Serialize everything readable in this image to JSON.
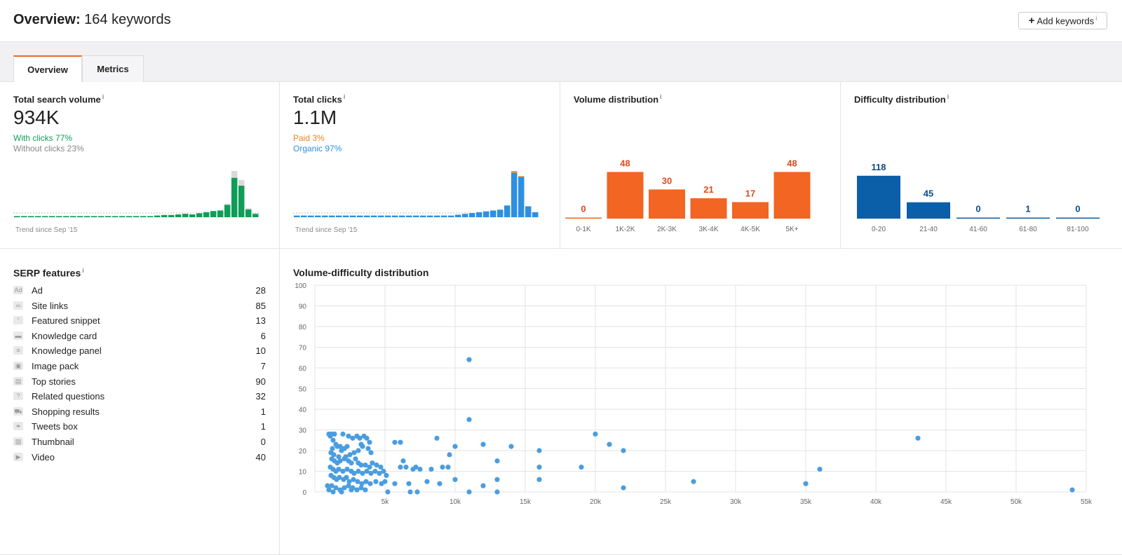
{
  "header": {
    "title_bold": "Overview:",
    "title_rest": "164 keywords",
    "add_button_label": "Add keywords",
    "add_button_info": "i"
  },
  "tabs": [
    {
      "label": "Overview",
      "active": true
    },
    {
      "label": "Metrics",
      "active": false
    }
  ],
  "search_volume": {
    "title": "Total search volume",
    "info": "i",
    "value": "934K",
    "with_clicks": "With clicks 77%",
    "without_clicks": "Without clicks 23%",
    "trend_label": "Trend since Sep '15",
    "colors": {
      "main": "#0f9d58",
      "rest": "#d9d9d9"
    },
    "trend_values": [
      2,
      2,
      2,
      2,
      2,
      2,
      2,
      2,
      2,
      2,
      2,
      2,
      2,
      2,
      2,
      2,
      2,
      2,
      2,
      2,
      3,
      4,
      4,
      5,
      6,
      5,
      7,
      9,
      11,
      12,
      22,
      70,
      56,
      14,
      6
    ],
    "trend_rest_values": [
      0,
      0,
      0,
      0,
      0,
      0,
      0,
      0,
      0,
      0,
      0,
      0,
      0,
      0,
      0,
      0,
      0,
      0,
      0,
      0,
      0,
      0,
      0,
      0,
      0,
      0,
      0,
      0,
      0,
      0,
      2,
      12,
      10,
      2,
      1
    ]
  },
  "clicks": {
    "title": "Total clicks",
    "info": "i",
    "value": "1.1M",
    "paid": "Paid 3%",
    "organic": "Organic 97%",
    "trend_label": "Trend since Sep '15",
    "colors": {
      "organic": "#2e8fe0",
      "paid": "#f39a2b"
    },
    "trend_values": [
      2,
      2,
      2,
      2,
      2,
      2,
      2,
      2,
      2,
      2,
      2,
      2,
      2,
      2,
      2,
      2,
      2,
      2,
      2,
      2,
      2,
      2,
      2,
      3,
      4,
      5,
      6,
      7,
      8,
      9,
      14,
      53,
      48,
      13,
      6
    ],
    "trend_paid_values": [
      0,
      0,
      0,
      0,
      0,
      0,
      0,
      0,
      0,
      0,
      0,
      0,
      0,
      0,
      0,
      0,
      0,
      0,
      0,
      0,
      0,
      0,
      0,
      0,
      0,
      0,
      0,
      0,
      0,
      0,
      0,
      2,
      1,
      0,
      0
    ]
  },
  "volume_distribution": {
    "title": "Volume distribution",
    "info": "i",
    "color": "#f26522",
    "label_color": "#e0491b",
    "categories": [
      "0-1K",
      "1K-2K",
      "2K-3K",
      "3K-4K",
      "4K-5K",
      "5K+"
    ],
    "values": [
      0,
      48,
      30,
      21,
      17,
      48
    ]
  },
  "difficulty_distribution": {
    "title": "Difficulty distribution",
    "info": "i",
    "color": "#0b5ea8",
    "label_color": "#0b4a8a",
    "categories": [
      "0-20",
      "21-40",
      "41-60",
      "61-80",
      "81-100"
    ],
    "values": [
      118,
      45,
      0,
      1,
      0
    ]
  },
  "serp": {
    "title": "SERP features",
    "info": "i",
    "items": [
      {
        "label": "Ad",
        "count": "28",
        "icon": "ad-icon"
      },
      {
        "label": "Site links",
        "count": "85",
        "icon": "link-icon"
      },
      {
        "label": "Featured snippet",
        "count": "13",
        "icon": "quote-icon"
      },
      {
        "label": "Knowledge card",
        "count": "6",
        "icon": "card-icon"
      },
      {
        "label": "Knowledge panel",
        "count": "10",
        "icon": "panel-icon"
      },
      {
        "label": "Image pack",
        "count": "7",
        "icon": "image-pack-icon"
      },
      {
        "label": "Top stories",
        "count": "90",
        "icon": "news-icon"
      },
      {
        "label": "Related questions",
        "count": "32",
        "icon": "question-icon"
      },
      {
        "label": "Shopping results",
        "count": "1",
        "icon": "cart-icon"
      },
      {
        "label": "Tweets box",
        "count": "1",
        "icon": "twitter-icon"
      },
      {
        "label": "Thumbnail",
        "count": "0",
        "icon": "thumbnail-icon"
      },
      {
        "label": "Video",
        "count": "40",
        "icon": "video-icon"
      }
    ]
  },
  "scatter": {
    "title": "Volume-difficulty distribution",
    "color": "#4a9de0",
    "x_ticks": [
      "5k",
      "10k",
      "15k",
      "20k",
      "25k",
      "30k",
      "35k",
      "40k",
      "45k",
      "50k",
      "55k"
    ],
    "y_ticks": [
      "0",
      "10",
      "20",
      "30",
      "40",
      "50",
      "60",
      "70",
      "80",
      "90",
      "100"
    ]
  },
  "chart_data": {
    "type": "scatter",
    "title": "Volume-difficulty distribution",
    "xlabel": "",
    "ylabel": "",
    "xlim": [
      0,
      55000
    ],
    "ylim": [
      0,
      100
    ],
    "grid": true,
    "points": [
      [
        1000,
        28
      ],
      [
        1200,
        28
      ],
      [
        1400,
        28
      ],
      [
        1100,
        27
      ],
      [
        1300,
        25
      ],
      [
        1500,
        23
      ],
      [
        1250,
        21
      ],
      [
        1600,
        22
      ],
      [
        1800,
        22
      ],
      [
        1900,
        20
      ],
      [
        2100,
        21
      ],
      [
        2300,
        22
      ],
      [
        1150,
        19
      ],
      [
        1350,
        18
      ],
      [
        1700,
        17
      ],
      [
        2200,
        17
      ],
      [
        2500,
        18
      ],
      [
        2800,
        19
      ],
      [
        3100,
        20
      ],
      [
        3300,
        23
      ],
      [
        2000,
        28
      ],
      [
        2400,
        27
      ],
      [
        2700,
        26
      ],
      [
        3000,
        27
      ],
      [
        3200,
        26
      ],
      [
        3500,
        27
      ],
      [
        3700,
        26
      ],
      [
        3900,
        24
      ],
      [
        3400,
        22
      ],
      [
        3800,
        21
      ],
      [
        4000,
        19
      ],
      [
        1200,
        16
      ],
      [
        1400,
        15
      ],
      [
        1600,
        14
      ],
      [
        1800,
        15
      ],
      [
        2100,
        16
      ],
      [
        2400,
        15
      ],
      [
        2600,
        14
      ],
      [
        2900,
        16
      ],
      [
        3100,
        14
      ],
      [
        3300,
        13
      ],
      [
        3600,
        13
      ],
      [
        3900,
        12
      ],
      [
        4100,
        14
      ],
      [
        4400,
        13
      ],
      [
        4700,
        12
      ],
      [
        1100,
        12
      ],
      [
        1300,
        11
      ],
      [
        1500,
        10
      ],
      [
        1700,
        11
      ],
      [
        2000,
        10
      ],
      [
        2300,
        11
      ],
      [
        2600,
        10
      ],
      [
        2800,
        9
      ],
      [
        3100,
        10
      ],
      [
        3400,
        9
      ],
      [
        3700,
        10
      ],
      [
        4000,
        9
      ],
      [
        4300,
        10
      ],
      [
        4600,
        9
      ],
      [
        4900,
        10
      ],
      [
        1150,
        8
      ],
      [
        1350,
        7
      ],
      [
        1550,
        6
      ],
      [
        1750,
        7
      ],
      [
        2050,
        6
      ],
      [
        2250,
        7
      ],
      [
        2450,
        5
      ],
      [
        2750,
        6
      ],
      [
        3050,
        5
      ],
      [
        3350,
        4
      ],
      [
        3650,
        5
      ],
      [
        3950,
        4
      ],
      [
        4350,
        5
      ],
      [
        4750,
        4
      ],
      [
        5000,
        5
      ],
      [
        900,
        3
      ],
      [
        1200,
        3
      ],
      [
        1500,
        2
      ],
      [
        1800,
        1
      ],
      [
        2100,
        2
      ],
      [
        2400,
        3
      ],
      [
        2700,
        2
      ],
      [
        3000,
        1
      ],
      [
        3300,
        2
      ],
      [
        3600,
        1
      ],
      [
        5100,
        8
      ],
      [
        1000,
        1
      ],
      [
        1300,
        0
      ],
      [
        1900,
        0
      ],
      [
        2600,
        1
      ],
      [
        5200,
        0
      ],
      [
        5700,
        24
      ],
      [
        6100,
        24
      ],
      [
        6300,
        15
      ],
      [
        6100,
        12
      ],
      [
        6500,
        12
      ],
      [
        7000,
        11
      ],
      [
        7500,
        11
      ],
      [
        7200,
        12
      ],
      [
        8000,
        5
      ],
      [
        8300,
        11
      ],
      [
        9100,
        12
      ],
      [
        9500,
        12
      ],
      [
        8700,
        26
      ],
      [
        9600,
        18
      ],
      [
        10000,
        22
      ],
      [
        10000,
        6
      ],
      [
        5700,
        4
      ],
      [
        6700,
        4
      ],
      [
        6800,
        0
      ],
      [
        7300,
        0
      ],
      [
        8900,
        4
      ],
      [
        11000,
        64
      ],
      [
        11000,
        35
      ],
      [
        12000,
        23
      ],
      [
        11000,
        0
      ],
      [
        12000,
        3
      ],
      [
        13000,
        15
      ],
      [
        13000,
        6
      ],
      [
        13000,
        0
      ],
      [
        14000,
        22
      ],
      [
        16000,
        20
      ],
      [
        16000,
        12
      ],
      [
        16000,
        6
      ],
      [
        19000,
        12
      ],
      [
        20000,
        28
      ],
      [
        21000,
        23
      ],
      [
        22000,
        20
      ],
      [
        22000,
        2
      ],
      [
        27000,
        5
      ],
      [
        35000,
        4
      ],
      [
        36000,
        11
      ],
      [
        43000,
        26
      ],
      [
        54000,
        1
      ]
    ]
  }
}
